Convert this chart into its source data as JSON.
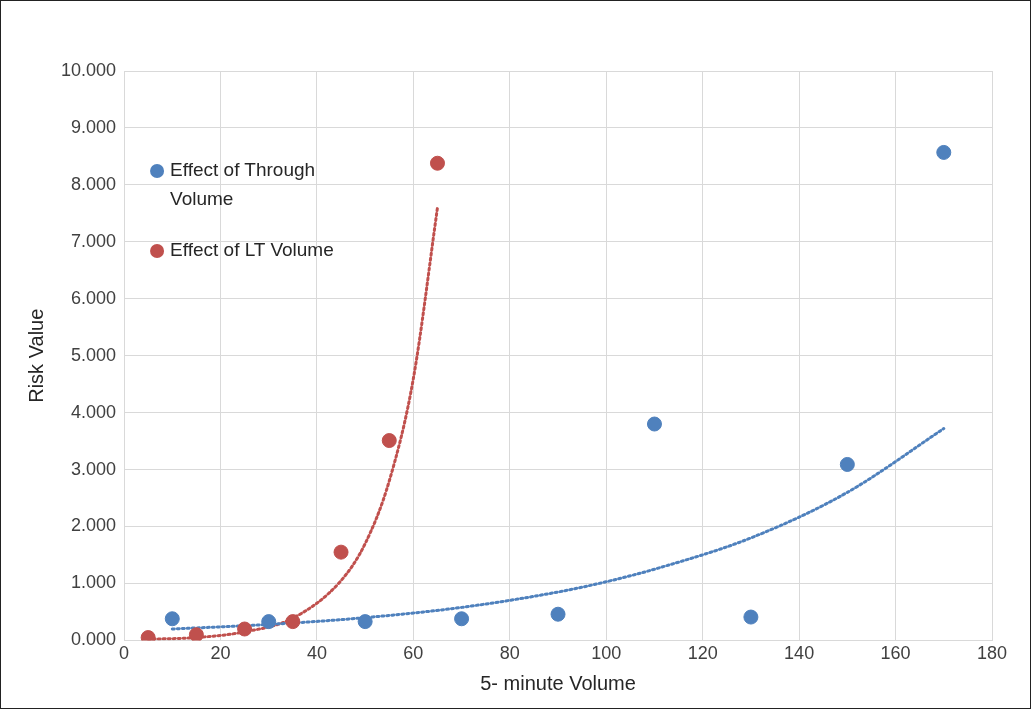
{
  "chart_data": {
    "type": "scatter",
    "xlabel": "5- minute Volume",
    "ylabel": "Risk Value",
    "xlim": [
      0,
      180
    ],
    "xticks": [
      0,
      20,
      40,
      60,
      80,
      100,
      120,
      140,
      160,
      180
    ],
    "ylim": [
      0,
      10
    ],
    "yticks": [
      {
        "value": 0,
        "label": "0.000"
      },
      {
        "value": 1,
        "label": "1.000"
      },
      {
        "value": 2,
        "label": "2.000"
      },
      {
        "value": 3,
        "label": "3.000"
      },
      {
        "value": 4,
        "label": "4.000"
      },
      {
        "value": 5,
        "label": "5.000"
      },
      {
        "value": 6,
        "label": "6.000"
      },
      {
        "value": 7,
        "label": "7.000"
      },
      {
        "value": 8,
        "label": "8.000"
      },
      {
        "value": 9,
        "label": "9.000"
      },
      {
        "value": 10,
        "label": "10.000"
      }
    ],
    "grid": true,
    "legend": "top left",
    "marker": "circle",
    "series": [
      {
        "name": "Effect of Through Volume",
        "color": "#4f81bd",
        "x": [
          10,
          30,
          50,
          70,
          90,
          110,
          130,
          150,
          170
        ],
        "values": [
          0.38,
          0.33,
          0.33,
          0.38,
          0.46,
          3.8,
          0.41,
          3.09,
          8.57
        ]
      },
      {
        "name": "Effect of LT Volume",
        "color": "#c0504d",
        "x": [
          5,
          15,
          25,
          35,
          45,
          55,
          65
        ],
        "values": [
          0.05,
          0.1,
          0.2,
          0.33,
          1.55,
          3.51,
          8.38
        ]
      },
      {
        "type": "line",
        "color": "#4f81bd",
        "line_style": "dotted",
        "marker": "none",
        "x": [
          10,
          30,
          50,
          70,
          90,
          100,
          110,
          130,
          150,
          170
        ],
        "values": [
          0.2,
          0.28,
          0.4,
          0.58,
          0.85,
          1.03,
          1.25,
          1.8,
          2.6,
          3.72
        ]
      },
      {
        "type": "line",
        "color": "#c0504d",
        "line_style": "dotted",
        "marker": "none",
        "x": [
          5,
          15,
          25,
          35,
          45,
          50,
          55,
          60,
          65
        ],
        "values": [
          0.02,
          0.05,
          0.15,
          0.39,
          1.05,
          1.7,
          2.8,
          4.6,
          7.6
        ]
      }
    ]
  }
}
